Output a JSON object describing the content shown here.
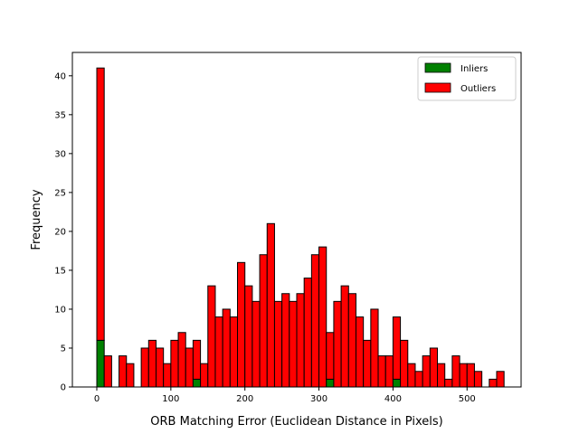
{
  "chart_data": {
    "type": "bar",
    "subtype": "stacked-histogram",
    "title": "",
    "xlabel": "ORB Matching Error (Euclidean Distance in Pixels)",
    "ylabel": "Frequency",
    "xlim": [
      -33,
      573
    ],
    "ylim": [
      0,
      43
    ],
    "xticks": [
      0,
      100,
      200,
      300,
      400,
      500
    ],
    "yticks": [
      0,
      5,
      10,
      15,
      20,
      25,
      30,
      35,
      40
    ],
    "bin_edges_start": 0,
    "bin_width": 10,
    "legend_position": "top-right",
    "series": [
      {
        "name": "Inliers",
        "color": "#008000",
        "values": [
          6,
          0,
          0,
          0,
          0,
          0,
          0,
          0,
          0,
          0,
          0,
          0,
          0,
          1,
          0,
          0,
          0,
          0,
          0,
          0,
          0,
          0,
          0,
          0,
          0,
          0,
          0,
          0,
          0,
          0,
          0,
          1,
          0,
          0,
          0,
          0,
          0,
          0,
          0,
          0,
          1,
          0,
          0,
          0,
          0,
          0,
          0,
          0,
          0,
          0,
          0,
          0,
          0,
          0,
          0
        ]
      },
      {
        "name": "Outliers",
        "color": "#ff0000",
        "values": [
          35,
          4,
          0,
          4,
          3,
          0,
          5,
          6,
          5,
          3,
          6,
          7,
          5,
          5,
          3,
          13,
          9,
          10,
          9,
          16,
          13,
          11,
          17,
          21,
          11,
          12,
          11,
          12,
          14,
          17,
          18,
          6,
          11,
          13,
          12,
          9,
          6,
          10,
          4,
          4,
          8,
          6,
          3,
          2,
          4,
          5,
          3,
          1,
          4,
          3,
          3,
          2,
          0,
          1,
          2
        ]
      }
    ]
  }
}
